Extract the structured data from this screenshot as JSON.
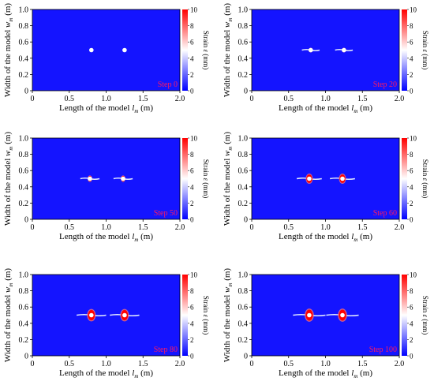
{
  "figure": {
    "xlabel": "Length of the model",
    "xlabel_symbol": "l",
    "xlabel_sub": "m",
    "xlabel_unit": "(m)",
    "ylabel": "Width of the model",
    "ylabel_symbol": "w",
    "ylabel_sub": "m",
    "ylabel_unit": "(m)",
    "colorbar_label": "Strain",
    "colorbar_symbol": "ε",
    "colorbar_unit": "(mm)"
  },
  "colors": {
    "field": "#1414ff",
    "hole": "#ffffff",
    "strain_high": "#ff0000",
    "step_label": "#ff1a5e",
    "colorbar_low": "#0000ff",
    "colorbar_mid": "#ffffff",
    "colorbar_high": "#ff0000"
  },
  "chart_data": [
    {
      "type": "heatmap",
      "step_label": "Step 0",
      "xlim": [
        0,
        2.0
      ],
      "ylim": [
        0,
        1.0
      ],
      "xticks": [
        "0",
        "0.5",
        "1.0",
        "1.5",
        "2.0"
      ],
      "yticks": [
        "0",
        "0.2",
        "0.4",
        "0.6",
        "0.8",
        "1.0"
      ],
      "colorbar": {
        "range": [
          0,
          10
        ],
        "ticks": [
          "0",
          "2",
          "4",
          "6",
          "8",
          "10"
        ]
      },
      "holes": [
        {
          "x": 0.8,
          "y": 0.5
        },
        {
          "x": 1.25,
          "y": 0.5
        }
      ],
      "crack_half_length": 0,
      "damage_radius": 0
    },
    {
      "type": "heatmap",
      "step_label": "Step 20",
      "xlim": [
        0,
        2.0
      ],
      "ylim": [
        0,
        1.0
      ],
      "xticks": [
        "0",
        "0.5",
        "1.0",
        "1.5",
        "2.0"
      ],
      "yticks": [
        "0",
        "0.2",
        "0.4",
        "0.6",
        "0.8",
        "1.0"
      ],
      "colorbar": {
        "range": [
          0,
          10
        ],
        "ticks": [
          "0",
          "2",
          "4",
          "6",
          "8",
          "10"
        ]
      },
      "holes": [
        {
          "x": 0.8,
          "y": 0.5
        },
        {
          "x": 1.25,
          "y": 0.5
        }
      ],
      "crack_half_length": 0.12,
      "damage_radius": 0.03
    },
    {
      "type": "heatmap",
      "step_label": "Step 50",
      "xlim": [
        0,
        2.0
      ],
      "ylim": [
        0,
        1.0
      ],
      "xticks": [
        "0",
        "0.5",
        "1.0",
        "1.5",
        "2.0"
      ],
      "yticks": [
        "0",
        "0.2",
        "0.4",
        "0.6",
        "0.8",
        "1.0"
      ],
      "colorbar": {
        "range": [
          0,
          10
        ],
        "ticks": [
          "0",
          "2",
          "4",
          "6",
          "8",
          "10"
        ]
      },
      "holes": [
        {
          "x": 0.78,
          "y": 0.5
        },
        {
          "x": 1.23,
          "y": 0.5
        }
      ],
      "crack_half_length": 0.13,
      "damage_radius": 0.045
    },
    {
      "type": "heatmap",
      "step_label": "Step 60",
      "xlim": [
        0,
        2.0
      ],
      "ylim": [
        0,
        1.0
      ],
      "xticks": [
        "0",
        "0.5",
        "1.0",
        "1.5",
        "2.0"
      ],
      "yticks": [
        "0",
        "0.2",
        "0.4",
        "0.6",
        "0.8",
        "1.0"
      ],
      "colorbar": {
        "range": [
          0,
          10
        ],
        "ticks": [
          "0",
          "2",
          "4",
          "6",
          "8",
          "10"
        ]
      },
      "holes": [
        {
          "x": 0.78,
          "y": 0.5
        },
        {
          "x": 1.23,
          "y": 0.5
        }
      ],
      "crack_half_length": 0.17,
      "damage_radius": 0.07
    },
    {
      "type": "heatmap",
      "step_label": "Step 80",
      "xlim": [
        0,
        2.0
      ],
      "ylim": [
        0,
        1.0
      ],
      "xticks": [
        "0",
        "0.5",
        "1.0",
        "1.5",
        "2.0"
      ],
      "yticks": [
        "0",
        "0.2",
        "0.4",
        "0.6",
        "0.8",
        "1.0"
      ],
      "colorbar": {
        "range": [
          0,
          10
        ],
        "ticks": [
          "0",
          "2",
          "4",
          "6",
          "8",
          "10"
        ]
      },
      "holes": [
        {
          "x": 0.8,
          "y": 0.5
        },
        {
          "x": 1.25,
          "y": 0.5
        }
      ],
      "crack_half_length": 0.2,
      "damage_radius": 0.085
    },
    {
      "type": "heatmap",
      "step_label": "Step 100",
      "xlim": [
        0,
        2.0
      ],
      "ylim": [
        0,
        1.0
      ],
      "xticks": [
        "0",
        "0.5",
        "1.0",
        "1.5",
        "2.0"
      ],
      "yticks": [
        "0",
        "0.2",
        "0.4",
        "0.6",
        "0.8",
        "1.0"
      ],
      "colorbar": {
        "range": [
          0,
          10
        ],
        "ticks": [
          "0",
          "2",
          "4",
          "6",
          "8",
          "10"
        ]
      },
      "holes": [
        {
          "x": 0.78,
          "y": 0.5
        },
        {
          "x": 1.23,
          "y": 0.5
        }
      ],
      "crack_half_length": 0.22,
      "damage_radius": 0.09
    }
  ]
}
